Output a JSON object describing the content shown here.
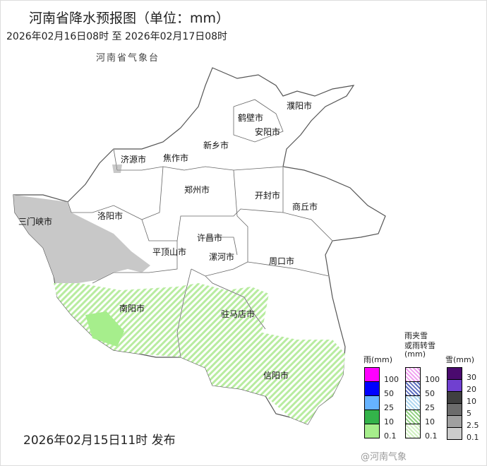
{
  "header": {
    "title": "河南省降水预报图（单位：mm）",
    "period": "2026年02月16日08时  至  2026年02月17日08时",
    "agency": "河南省气象台"
  },
  "footer": {
    "issued": "2026年02月15日11时 发布",
    "watermark": "@河南气象"
  },
  "cities": [
    "濮阳市",
    "鹤壁市",
    "安阳市",
    "新乡市",
    "济源市",
    "焦作市",
    "郑州市",
    "开封市",
    "商丘市",
    "三门峡市",
    "洛阳市",
    "许昌市",
    "平顶山市",
    "漯河市",
    "周口市",
    "南阳市",
    "驻马店市",
    "信阳市"
  ],
  "legend": {
    "rain": {
      "title": "雨(mm)",
      "colors": [
        "#ff00ff",
        "#0000ff",
        "#66b3ff",
        "#33b34a",
        "#a6ee8c"
      ],
      "values": [
        "100",
        "50",
        "25",
        "10",
        "0.1"
      ]
    },
    "mixed": {
      "title1": "雨夹雪",
      "title2": "或雨转雪",
      "title3": "(mm)",
      "colors": [
        "#f0a0f0",
        "#6070c0",
        "#b0d8f0",
        "#90d080",
        "#d0f0c0"
      ],
      "values": [
        "100",
        "50",
        "25",
        "10",
        "0.1"
      ]
    },
    "snow": {
      "title": "雪(mm)",
      "colors": [
        "#4a0a6e",
        "#7040d0",
        "#404040",
        "#6c6c6c",
        "#a0a0a0",
        "#cccccc"
      ],
      "values": [
        "30",
        "20",
        "10",
        "5",
        "2.5",
        "0.1"
      ]
    }
  }
}
